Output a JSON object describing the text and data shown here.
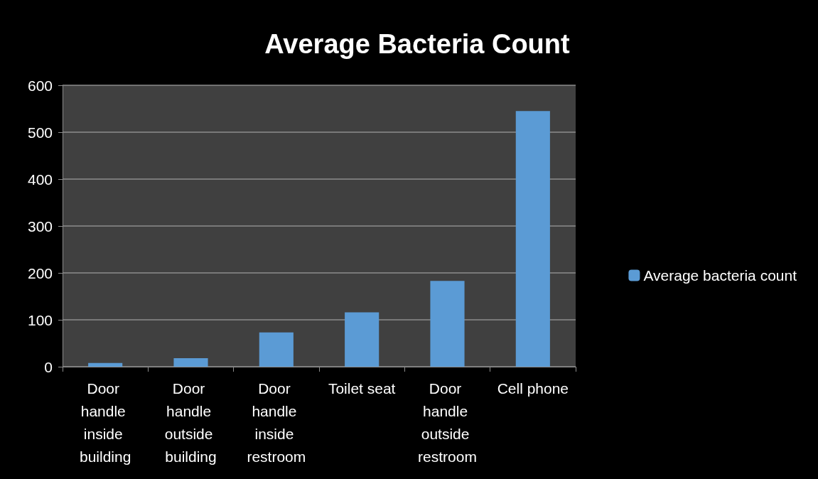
{
  "chart_data": {
    "type": "bar",
    "title": "Average Bacteria Count",
    "categories": [
      "Door handle inside building",
      "Door handle outside building",
      "Door handle inside restroom",
      "Toilet seat",
      "Door handle outside restroom",
      "Cell phone"
    ],
    "series": [
      {
        "name": "Average bacteria count",
        "color": "#5b9bd5",
        "values": [
          8,
          18,
          73,
          116,
          183,
          545
        ]
      }
    ],
    "ylim": [
      0,
      600
    ],
    "yticks": [
      0,
      100,
      200,
      300,
      400,
      500,
      600
    ],
    "grid": true,
    "legend": "right"
  }
}
